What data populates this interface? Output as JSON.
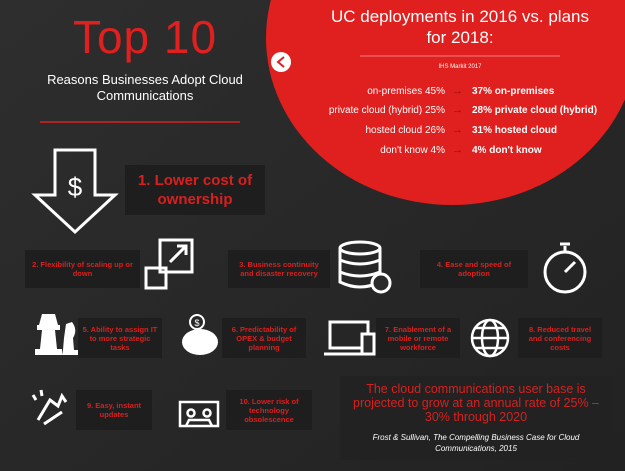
{
  "header": {
    "title": "Top 10",
    "subtitle": "Reasons Businesses Adopt Cloud Communications"
  },
  "deployments": {
    "title": "UC deployments in 2016 vs. plans for 2018:",
    "source": "IHS Markit 2017",
    "rows": [
      {
        "from": "on-premises 45%",
        "to": "37% on-premises"
      },
      {
        "from": "private cloud (hybrid) 25%",
        "to": "28% private cloud (hybrid)"
      },
      {
        "from": "hosted cloud 26%",
        "to": "31% hosted cloud"
      },
      {
        "from": "don't know 4%",
        "to": "4% don't know"
      }
    ]
  },
  "reasons": [
    "1. Lower cost of ownership",
    "2. Flexibility of scaling up or down",
    "3. Business continuity and disaster recovery",
    "4. Ease and speed of adoption",
    "5. Ability to assign IT to more strategic tasks",
    "6. Predictability of OPEX & budget planning",
    "7. Enablement of a mobile or remote workforce",
    "8. Reduced travel and conferencing costs",
    "9. Easy, instant updates",
    "10. Lower risk of technology obsolescence"
  ],
  "quote": {
    "text": "The cloud communications user base is projected to grow at an annual rate of 25% – 30% through 2020",
    "source": "Frost & Sullivan, The Compelling Business Case for Cloud Communications, 2015"
  }
}
